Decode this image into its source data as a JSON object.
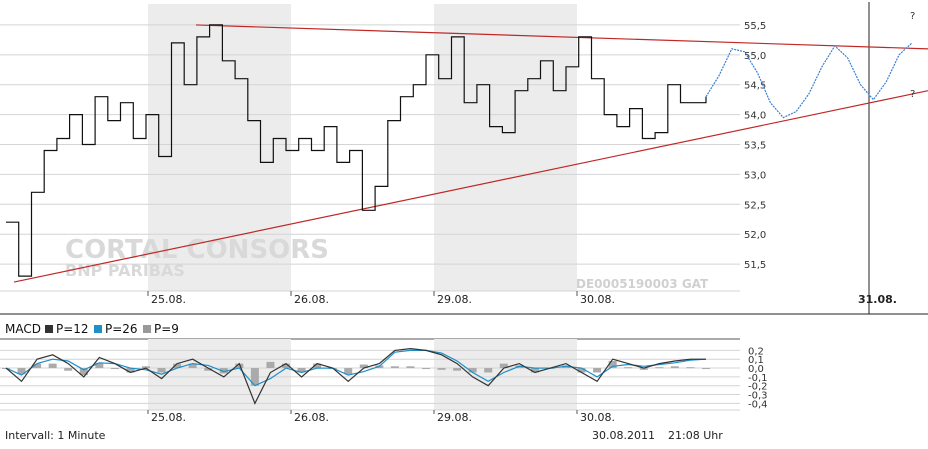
{
  "chart_data": [
    {
      "type": "line",
      "name": "price",
      "y_ticks": [
        "55,5",
        "55,0",
        "54,5",
        "54,0",
        "53,5",
        "53,0",
        "52,5",
        "52,0",
        "51,5"
      ],
      "y_tick_values": [
        55.5,
        55.0,
        54.5,
        54.0,
        53.5,
        53.0,
        52.5,
        52.0,
        51.5
      ],
      "ylim": [
        51.05,
        55.85
      ],
      "x_ticks": [
        "25.08.",
        "26.08.",
        "29.08.",
        "30.08."
      ],
      "forecast_tick": "31.08.",
      "forecast_marks": [
        "?",
        "?"
      ],
      "shaded_days": [
        "25.08.",
        "29.08."
      ],
      "series_price": [
        52.2,
        51.3,
        52.7,
        53.4,
        53.6,
        54.0,
        53.5,
        54.3,
        53.9,
        54.2,
        53.6,
        54.0,
        53.3,
        55.2,
        54.5,
        55.3,
        55.5,
        54.9,
        54.6,
        53.9,
        53.2,
        53.6,
        53.4,
        53.6,
        53.4,
        53.8,
        53.2,
        53.4,
        52.4,
        52.8,
        53.9,
        54.3,
        54.5,
        55.0,
        54.6,
        55.3,
        54.2,
        54.5,
        53.8,
        53.7,
        54.4,
        54.6,
        54.9,
        54.4,
        54.8,
        55.3,
        54.6,
        54.0,
        53.8,
        54.1,
        53.6,
        53.7,
        54.5,
        54.2,
        54.2,
        54.3
      ],
      "forecast_path": [
        54.3,
        54.65,
        55.1,
        55.05,
        54.7,
        54.2,
        53.95,
        54.05,
        54.35,
        54.8,
        55.15,
        54.95,
        54.5,
        54.25,
        54.55,
        55.0,
        55.2
      ],
      "trendline_top": [
        [
          55.5
        ],
        [
          55.1
        ]
      ],
      "trendline_bottom": [
        [
          51.2
        ],
        [
          54.4
        ]
      ],
      "watermark_line1": "CORTAL CONSORS",
      "watermark_line2": "BNP PARIBAS",
      "isin_label": "DE0005190003  GAT"
    },
    {
      "type": "line",
      "name": "MACD",
      "legend": [
        {
          "label": "MACD",
          "color": ""
        },
        {
          "label": "P=12",
          "color": "#333333"
        },
        {
          "label": "P=26",
          "color": "#1e90c8"
        },
        {
          "label": "P=9",
          "color": "#999999"
        }
      ],
      "y_ticks": [
        "0,2",
        "0,1",
        "0,0",
        "-0,1",
        "-0,2",
        "-0,3",
        "-0,4"
      ],
      "y_tick_values": [
        0.2,
        0.1,
        0.0,
        -0.1,
        -0.2,
        -0.3,
        -0.4
      ],
      "ylim": [
        -0.43,
        0.25
      ],
      "x_ticks": [
        "25.08.",
        "26.08.",
        "29.08.",
        "30.08."
      ],
      "macd": [
        0.0,
        -0.15,
        0.1,
        0.15,
        0.05,
        -0.1,
        0.12,
        0.05,
        -0.05,
        0.0,
        -0.12,
        0.05,
        0.1,
        0.0,
        -0.1,
        0.05,
        -0.4,
        -0.05,
        0.05,
        -0.1,
        0.05,
        0.0,
        -0.15,
        0.0,
        0.05,
        0.2,
        0.22,
        0.2,
        0.15,
        0.05,
        -0.1,
        -0.2,
        0.0,
        0.05,
        -0.05,
        0.0,
        0.05,
        -0.05,
        -0.15,
        0.1,
        0.05,
        0.0,
        0.05,
        0.08,
        0.1,
        0.1
      ],
      "signal": [
        0.0,
        -0.08,
        0.05,
        0.1,
        0.08,
        -0.02,
        0.06,
        0.05,
        0.0,
        -0.02,
        -0.07,
        0.0,
        0.05,
        0.03,
        -0.04,
        0.0,
        -0.2,
        -0.12,
        0.0,
        -0.05,
        0.0,
        0.0,
        -0.08,
        -0.04,
        0.02,
        0.18,
        0.2,
        0.2,
        0.17,
        0.08,
        -0.05,
        -0.15,
        -0.05,
        0.02,
        0.0,
        0.0,
        0.02,
        0.0,
        -0.1,
        0.02,
        0.04,
        0.02,
        0.04,
        0.06,
        0.09,
        0.1
      ]
    }
  ],
  "footer": {
    "interval": "Intervall: 1 Minute",
    "date": "30.08.2011",
    "time": "21:08 Uhr"
  },
  "colors": {
    "trend": "#c02828",
    "price": "#111111",
    "forecast": "#3a7fd0",
    "shade": "#ececec",
    "grid": "#d4d4d4"
  }
}
